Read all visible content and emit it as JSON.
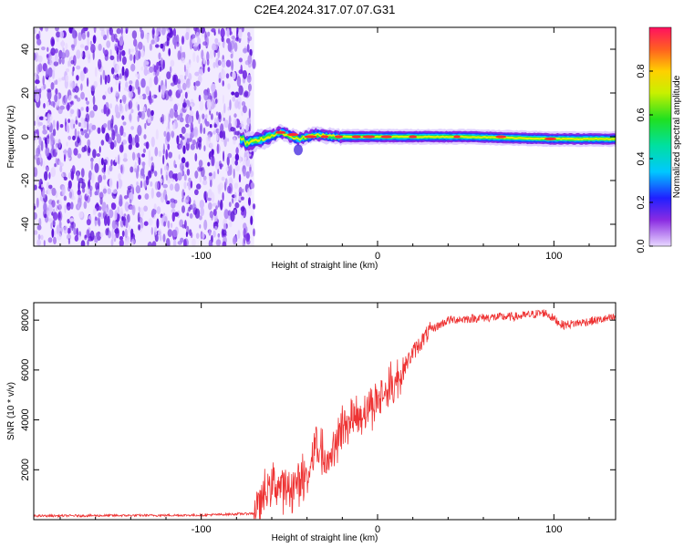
{
  "title": "C2E4.2024.317.07.07.G31",
  "chart_data": [
    {
      "type": "heatmap",
      "xlabel": "Height of straight line (km)",
      "ylabel": "Frequency (Hz)",
      "xlim": [
        -195,
        135
      ],
      "ylim": [
        -50,
        50
      ],
      "xticks": [
        -100,
        0,
        100
      ],
      "yticks": [
        -40,
        -20,
        0,
        20,
        40
      ],
      "noise_region_x": [
        -195,
        -70
      ],
      "signal_center_hz": [
        {
          "x": -75,
          "y": -3
        },
        {
          "x": -65,
          "y": -1
        },
        {
          "x": -55,
          "y": 2
        },
        {
          "x": -45,
          "y": -1
        },
        {
          "x": -35,
          "y": 1
        },
        {
          "x": -25,
          "y": 0
        },
        {
          "x": -10,
          "y": 0
        },
        {
          "x": 0,
          "y": 0
        },
        {
          "x": 50,
          "y": 0
        },
        {
          "x": 100,
          "y": -1
        },
        {
          "x": 135,
          "y": -1
        }
      ],
      "colorbar": {
        "label": "Normalized spectral amplitude",
        "ticks": [
          "0.0",
          "0.2",
          "0.4",
          "0.6",
          "0.8"
        ],
        "range": [
          0,
          1
        ]
      }
    },
    {
      "type": "line",
      "xlabel": "Height of straight line (km)",
      "ylabel": "SNR (10 * v/v)",
      "xlim": [
        -195,
        135
      ],
      "ylim": [
        0,
        8700
      ],
      "xticks": [
        -100,
        0,
        100
      ],
      "yticks": [
        2000,
        4000,
        6000,
        8000
      ],
      "color": "#ee3333",
      "series_trend": [
        {
          "x": -195,
          "y": 150
        },
        {
          "x": -100,
          "y": 180
        },
        {
          "x": -70,
          "y": 250
        },
        {
          "x": -60,
          "y": 1500
        },
        {
          "x": -50,
          "y": 1200
        },
        {
          "x": -40,
          "y": 1800
        },
        {
          "x": -35,
          "y": 3000
        },
        {
          "x": -28,
          "y": 2500
        },
        {
          "x": -20,
          "y": 3800
        },
        {
          "x": -10,
          "y": 4200
        },
        {
          "x": 0,
          "y": 4800
        },
        {
          "x": 10,
          "y": 5500
        },
        {
          "x": 20,
          "y": 6700
        },
        {
          "x": 30,
          "y": 7600
        },
        {
          "x": 40,
          "y": 8000
        },
        {
          "x": 60,
          "y": 8100
        },
        {
          "x": 80,
          "y": 8150
        },
        {
          "x": 95,
          "y": 8300
        },
        {
          "x": 105,
          "y": 7800
        },
        {
          "x": 120,
          "y": 7950
        },
        {
          "x": 135,
          "y": 8100
        }
      ]
    }
  ]
}
